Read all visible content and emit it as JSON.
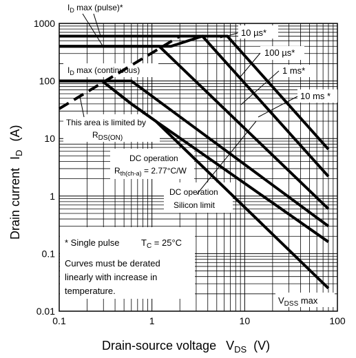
{
  "chart_data": {
    "type": "line",
    "title": "",
    "xlabel": "Drain-source voltage",
    "xlabel_symbol": "V",
    "xlabel_sub": "DS",
    "xlabel_unit": "(V)",
    "ylabel": "Drain current",
    "ylabel_symbol": "I",
    "ylabel_sub": "D",
    "ylabel_unit": "(A)",
    "x_scale": "log",
    "y_scale": "log",
    "xlim": [
      0.1,
      100
    ],
    "ylim": [
      0.01,
      1000
    ],
    "x_ticks": [
      "0.1",
      "1",
      "10",
      "100"
    ],
    "y_ticks": [
      "0.01",
      "0.1",
      "1",
      "10",
      "100",
      "1000"
    ],
    "grid": true,
    "series": [
      {
        "name": "10 µs*",
        "style": "solid",
        "points": [
          [
            0.1,
            600
          ],
          [
            6.5,
            600
          ],
          [
            80,
            6.5
          ]
        ]
      },
      {
        "name": "100 µs*",
        "style": "solid",
        "points": [
          [
            0.1,
            400
          ],
          [
            1.6,
            400
          ],
          [
            3.5,
            600
          ],
          [
            80,
            2.2
          ]
        ]
      },
      {
        "name": "1 ms*",
        "style": "solid",
        "points": [
          [
            0.1,
            400
          ],
          [
            1.2,
            400
          ],
          [
            80,
            0.6
          ]
        ]
      },
      {
        "name": "10 ms *",
        "style": "solid",
        "points": [
          [
            0.1,
            100
          ],
          [
            0.6,
            100
          ],
          [
            80,
            0.3
          ]
        ]
      },
      {
        "name": "DC operation",
        "style": "solid",
        "points": [
          [
            0.1,
            100
          ],
          [
            0.29,
            100
          ],
          [
            0.6,
            40
          ],
          [
            1.1,
            20
          ],
          [
            80,
            0.16
          ]
        ]
      },
      {
        "name": "",
        "style": "solid",
        "points": [
          [
            0.1,
            100
          ],
          [
            0.29,
            100
          ],
          [
            0.6,
            40
          ],
          [
            1.1,
            20
          ],
          [
            80,
            0.025
          ]
        ]
      },
      {
        "name": "",
        "style": "dashed",
        "points": [
          [
            0.1,
            33
          ],
          [
            2,
            600
          ]
        ]
      }
    ],
    "limit_lines": [
      {
        "label": "I",
        "sub": "D",
        "rest": " max (pulse)*",
        "y": 600
      },
      {
        "label": "I",
        "sub": "D",
        "rest": " max (continuous)",
        "y": 100
      },
      {
        "label": "V",
        "sub": "DSS",
        "rest": " max",
        "x": 80
      }
    ],
    "annotations": {
      "rds_line1": "This area is limited by",
      "rds_R": "R",
      "rds_sub": "DS(ON)",
      "dc_title": "DC operation",
      "dc_R": "R",
      "dc_R_sub": "th(ch-a)",
      "dc_R_val": " = 2.77°C/W",
      "dc_silicon_1": "DC operation",
      "dc_silicon_2": "Silicon limit",
      "single_pulse": "* Single pulse",
      "tc_T": "T",
      "tc_sub": "C",
      "tc_val": " = 25°C",
      "note_1": "Curves must be derated",
      "note_2": "linearly with increase in",
      "note_3": "temperature."
    }
  }
}
